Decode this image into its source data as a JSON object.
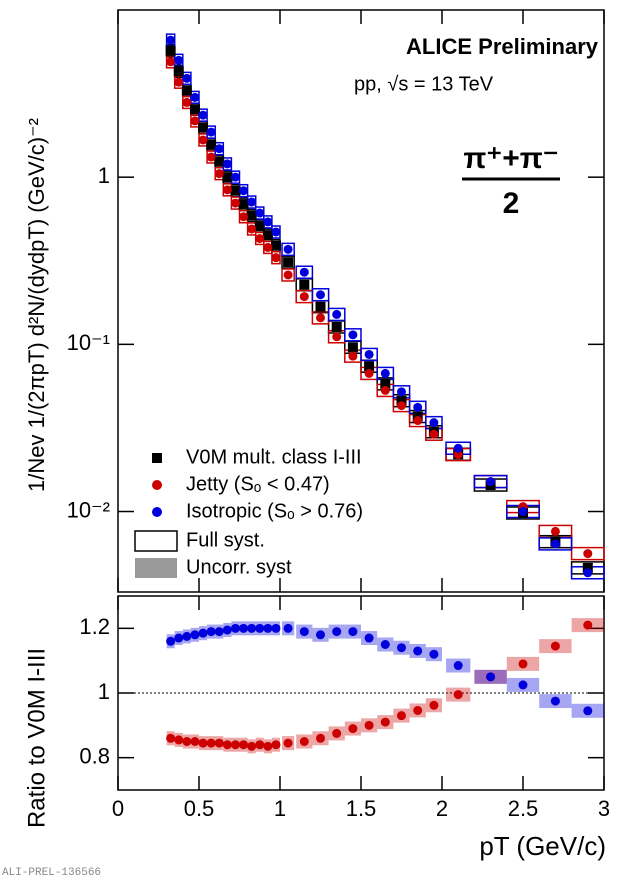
{
  "chart_data": [
    {
      "type": "scatter",
      "title": "ALICE Preliminary",
      "subtitle": "pp, √s = 13 TeV",
      "particle": {
        "numerator": "π⁺+π⁻",
        "denominator": "2"
      },
      "y_label": "1/Nev 1/(2πpT) d²N/(dydpT) (GeV/c)⁻²",
      "x": [
        0.325,
        0.375,
        0.425,
        0.475,
        0.525,
        0.575,
        0.625,
        0.675,
        0.725,
        0.775,
        0.825,
        0.875,
        0.925,
        0.975,
        1.05,
        1.15,
        1.25,
        1.35,
        1.45,
        1.55,
        1.65,
        1.75,
        1.85,
        1.95,
        2.1,
        2.3,
        2.5,
        2.7,
        2.9
      ],
      "series": [
        {
          "name": "V0M mult. class I-III",
          "color": "#000000",
          "marker": "square",
          "values": [
            5.7,
            4.3,
            3.3,
            2.55,
            1.98,
            1.56,
            1.24,
            1.0,
            0.83,
            0.69,
            0.59,
            0.51,
            0.45,
            0.39,
            0.31,
            0.227,
            0.168,
            0.127,
            0.096,
            0.074,
            0.058,
            0.046,
            0.037,
            0.03,
            0.022,
            0.0144,
            0.0098,
            0.0066,
            0.0046
          ]
        },
        {
          "name": "Jetty (Sₒ < 0.47)",
          "color": "#cc0000",
          "marker": "circle",
          "values": [
            4.9,
            3.7,
            2.8,
            2.17,
            1.67,
            1.32,
            1.05,
            0.84,
            0.7,
            0.58,
            0.49,
            0.43,
            0.38,
            0.33,
            0.26,
            0.193,
            0.144,
            0.111,
            0.085,
            0.067,
            0.053,
            0.043,
            0.035,
            0.029,
            0.0219,
            0.0151,
            0.0107,
            0.0076,
            0.0056
          ]
        },
        {
          "name": "Isotropic (Sₒ > 0.76)",
          "color": "#0000dd",
          "marker": "circle",
          "values": [
            6.6,
            5.0,
            3.9,
            3.0,
            2.35,
            1.86,
            1.48,
            1.2,
            1.0,
            0.83,
            0.71,
            0.61,
            0.54,
            0.47,
            0.37,
            0.27,
            0.198,
            0.151,
            0.114,
            0.087,
            0.067,
            0.052,
            0.042,
            0.034,
            0.0239,
            0.0151,
            0.01,
            0.0064,
            0.0043
          ]
        }
      ],
      "syst_labels": [
        "Full syst.",
        "Uncorr. syst"
      ],
      "xlim": [
        0,
        3
      ],
      "ylim": [
        0.0033,
        10
      ],
      "log_y": true,
      "yticks": [
        {
          "value": 0.01,
          "label": "10⁻²"
        },
        {
          "value": 0.1,
          "label": "10⁻¹"
        },
        1
      ],
      "legend": "lower left"
    },
    {
      "type": "scatter",
      "y_label": "Ratio to V0M I-III",
      "x_label": "pT (GeV/c)",
      "x": [
        0.325,
        0.375,
        0.425,
        0.475,
        0.525,
        0.575,
        0.625,
        0.675,
        0.725,
        0.775,
        0.825,
        0.875,
        0.925,
        0.975,
        1.05,
        1.15,
        1.25,
        1.35,
        1.45,
        1.55,
        1.65,
        1.75,
        1.85,
        1.95,
        2.1,
        2.3,
        2.5,
        2.7,
        2.9
      ],
      "series": [
        {
          "color": "#cc0000",
          "values": [
            0.86,
            0.855,
            0.85,
            0.85,
            0.845,
            0.845,
            0.845,
            0.84,
            0.84,
            0.84,
            0.835,
            0.84,
            0.835,
            0.84,
            0.845,
            0.85,
            0.86,
            0.875,
            0.89,
            0.9,
            0.91,
            0.93,
            0.946,
            0.962,
            0.995,
            1.05,
            1.09,
            1.145,
            1.21
          ]
        },
        {
          "color": "#0000dd",
          "values": [
            1.16,
            1.17,
            1.175,
            1.18,
            1.185,
            1.19,
            1.19,
            1.195,
            1.2,
            1.2,
            1.2,
            1.2,
            1.2,
            1.2,
            1.2,
            1.19,
            1.18,
            1.19,
            1.19,
            1.17,
            1.15,
            1.14,
            1.13,
            1.12,
            1.085,
            1.05,
            1.025,
            0.975,
            0.945
          ]
        }
      ],
      "xlim": [
        0,
        3
      ],
      "ylim": [
        0.7,
        1.3
      ],
      "xticks": [
        0,
        0.5,
        1,
        1.5,
        2,
        2.5,
        3
      ],
      "yticks": [
        0.8,
        1,
        1.2
      ],
      "reference_line": 1
    }
  ],
  "footer": "ALI-PREL-136566"
}
